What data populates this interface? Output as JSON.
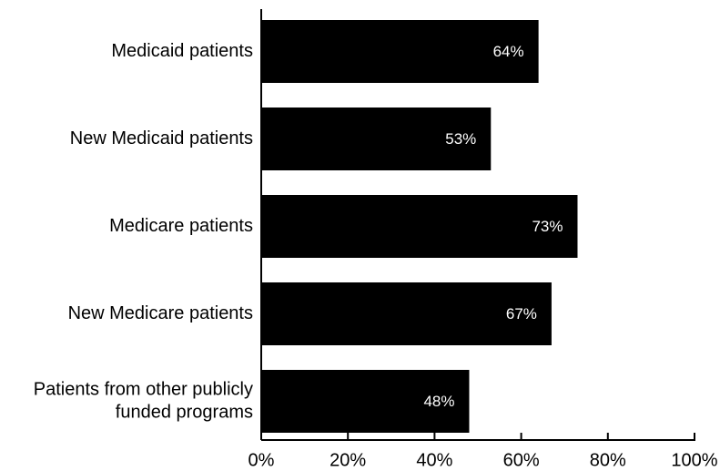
{
  "chart_data": {
    "type": "bar",
    "orientation": "horizontal",
    "categories": [
      [
        "Medicaid patients"
      ],
      [
        "New Medicaid patients"
      ],
      [
        "Medicare patients"
      ],
      [
        "New Medicare patients"
      ],
      [
        "Patients from other publicly",
        "funded programs"
      ]
    ],
    "values": [
      64,
      53,
      73,
      67,
      48
    ],
    "value_labels": [
      "64%",
      "53%",
      "73%",
      "67%",
      "48%"
    ],
    "xlim": [
      0,
      100
    ],
    "x_ticks": [
      0,
      20,
      40,
      60,
      80,
      100
    ],
    "x_tick_labels": [
      "0%",
      "20%",
      "40%",
      "60%",
      "80%",
      "100%"
    ],
    "title": "",
    "xlabel": "",
    "ylabel": "",
    "grid": false,
    "legend": "none",
    "colors": {
      "bar": "#000000",
      "bar_label": "#ffffff",
      "axis": "#000000",
      "text": "#000000"
    }
  }
}
